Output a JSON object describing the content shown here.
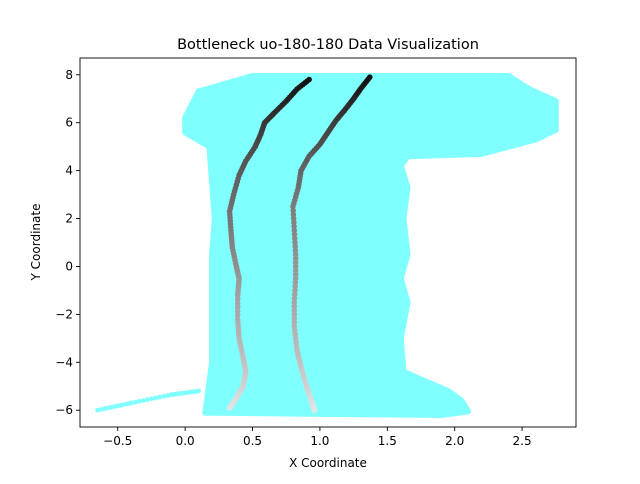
{
  "chart_data": {
    "type": "scatter",
    "title": "Bottleneck uo-180-180 Data Visualization",
    "xlabel": "X Coordinate",
    "ylabel": "Y Coordinate",
    "xlim": [
      -0.78,
      2.9
    ],
    "ylim": [
      -6.7,
      8.7
    ],
    "x_ticks": [
      -0.5,
      0.0,
      0.5,
      1.0,
      1.5,
      2.0,
      2.5
    ],
    "x_tick_labels": [
      "−0.5",
      "0.0",
      "0.5",
      "1.0",
      "1.5",
      "2.0",
      "2.5"
    ],
    "y_ticks": [
      -6,
      -4,
      -2,
      0,
      2,
      4,
      6,
      8
    ],
    "y_tick_labels": [
      "−6",
      "−4",
      "−2",
      "0",
      "2",
      "4",
      "6",
      "8"
    ],
    "grid": false,
    "legend": "none",
    "colors": {
      "background_points": "#80ffff",
      "trajectory_start": "#e6e6e6",
      "trajectory_end": "#111111",
      "axes": "#000000"
    },
    "series": [
      {
        "role": "background-trajectories",
        "color": "#80ffff",
        "hull_upper": [
          [
            0.15,
            -6.1
          ],
          [
            0.2,
            -4.0
          ],
          [
            0.2,
            -1.5
          ],
          [
            0.2,
            0.5
          ],
          [
            0.22,
            2.0
          ],
          [
            0.2,
            3.5
          ],
          [
            0.18,
            5.0
          ],
          [
            0.0,
            5.6
          ],
          [
            0.0,
            6.2
          ],
          [
            0.1,
            7.3
          ],
          [
            0.5,
            7.95
          ],
          [
            1.5,
            7.95
          ],
          [
            2.4,
            7.95
          ],
          [
            2.55,
            7.4
          ],
          [
            2.75,
            6.9
          ],
          [
            2.75,
            5.7
          ],
          [
            2.6,
            5.3
          ],
          [
            2.2,
            4.7
          ],
          [
            1.65,
            4.6
          ],
          [
            1.6,
            4.2
          ],
          [
            1.65,
            3.3
          ],
          [
            1.62,
            2.0
          ],
          [
            1.65,
            0.5
          ],
          [
            1.6,
            -0.5
          ],
          [
            1.65,
            -1.5
          ],
          [
            1.6,
            -3.0
          ],
          [
            1.62,
            -4.4
          ],
          [
            1.95,
            -5.2
          ],
          [
            2.05,
            -5.6
          ],
          [
            2.1,
            -6.05
          ],
          [
            1.9,
            -6.2
          ],
          [
            1.0,
            -6.15
          ],
          [
            0.15,
            -6.1
          ]
        ],
        "stray_left": [
          [
            -0.65,
            -6.0
          ],
          [
            -0.4,
            -5.7
          ],
          [
            -0.1,
            -5.35
          ],
          [
            0.1,
            -5.2
          ]
        ],
        "stray_right_upper": [
          [
            2.4,
            7.9
          ],
          [
            2.6,
            7.3
          ],
          [
            2.72,
            6.9
          ],
          [
            2.6,
            6.4
          ],
          [
            2.15,
            6.0
          ]
        ],
        "stray_right_lower": [
          [
            2.6,
            5.7
          ],
          [
            2.4,
            5.2
          ],
          [
            2.0,
            4.8
          ],
          [
            1.7,
            4.65
          ]
        ]
      },
      {
        "role": "trajectory-1",
        "color_gradient": [
          "#e6e6e6",
          "#111111"
        ],
        "points": [
          [
            0.33,
            -5.9
          ],
          [
            0.38,
            -5.5
          ],
          [
            0.43,
            -5.0
          ],
          [
            0.45,
            -4.4
          ],
          [
            0.43,
            -3.8
          ],
          [
            0.4,
            -3.0
          ],
          [
            0.39,
            -2.2
          ],
          [
            0.39,
            -1.2
          ],
          [
            0.4,
            -0.5
          ],
          [
            0.38,
            0.0
          ],
          [
            0.35,
            0.8
          ],
          [
            0.34,
            1.5
          ],
          [
            0.33,
            2.3
          ],
          [
            0.36,
            3.0
          ],
          [
            0.4,
            3.8
          ],
          [
            0.45,
            4.4
          ],
          [
            0.52,
            5.0
          ],
          [
            0.56,
            5.5
          ],
          [
            0.59,
            6.0
          ],
          [
            0.66,
            6.4
          ],
          [
            0.75,
            6.9
          ],
          [
            0.83,
            7.4
          ],
          [
            0.92,
            7.8
          ]
        ]
      },
      {
        "role": "trajectory-2",
        "color_gradient": [
          "#e6e6e6",
          "#111111"
        ],
        "points": [
          [
            0.96,
            -6.0
          ],
          [
            0.93,
            -5.5
          ],
          [
            0.9,
            -5.0
          ],
          [
            0.86,
            -4.2
          ],
          [
            0.83,
            -3.5
          ],
          [
            0.81,
            -2.5
          ],
          [
            0.81,
            -1.5
          ],
          [
            0.82,
            -0.5
          ],
          [
            0.82,
            0.5
          ],
          [
            0.81,
            1.5
          ],
          [
            0.8,
            2.5
          ],
          [
            0.84,
            3.3
          ],
          [
            0.86,
            4.0
          ],
          [
            0.92,
            4.6
          ],
          [
            1.0,
            5.1
          ],
          [
            1.06,
            5.6
          ],
          [
            1.12,
            6.1
          ],
          [
            1.18,
            6.5
          ],
          [
            1.25,
            7.0
          ],
          [
            1.3,
            7.4
          ],
          [
            1.37,
            7.9
          ]
        ]
      }
    ]
  }
}
